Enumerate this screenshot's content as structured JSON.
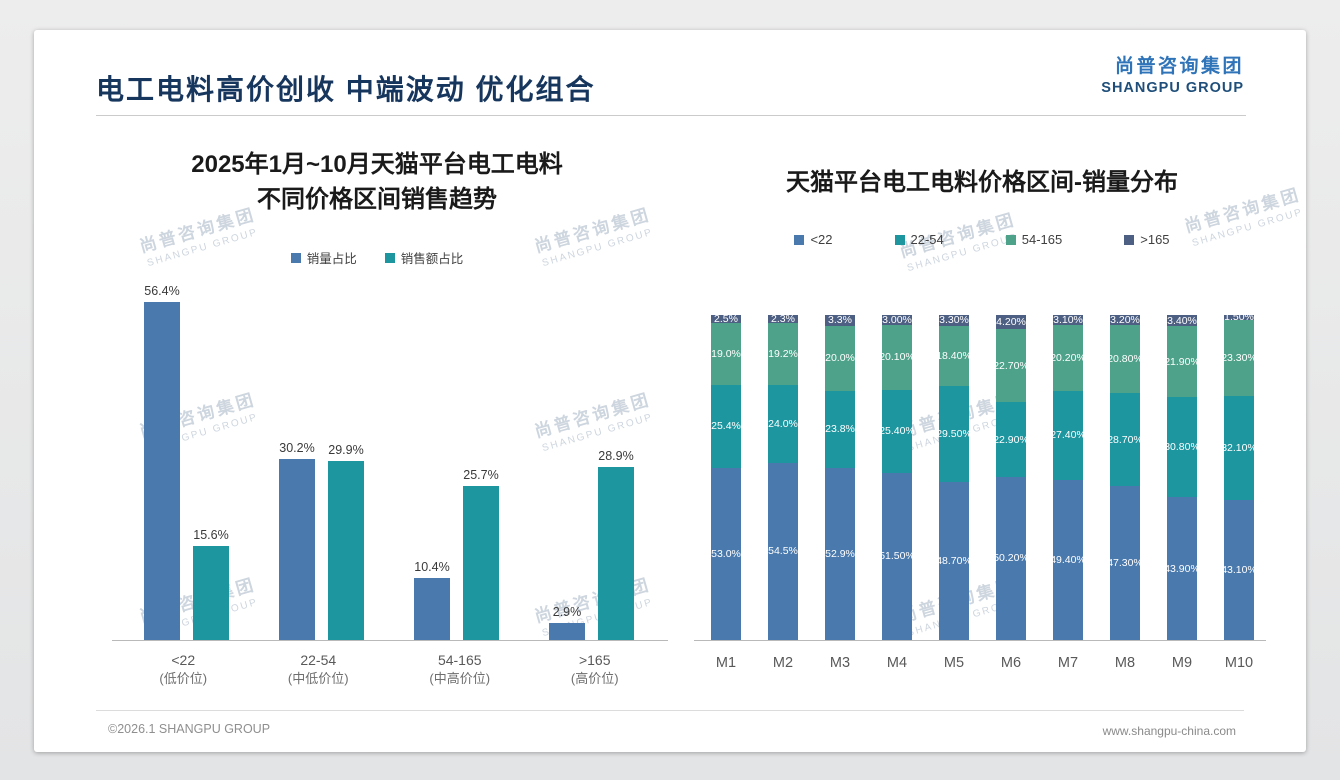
{
  "slide": {
    "title": "电工电料高价创收 中端波动 优化组合",
    "footer": {
      "left": "©2026.1 SHANGPU GROUP",
      "right": "www.shangpu-china.com"
    }
  },
  "logo": {
    "cn": "尚普咨询集团",
    "en": "SHANGPU GROUP"
  },
  "watermark": {
    "cn": "尚普咨询集团",
    "en": "SHANGPU GROUP"
  },
  "colors": {
    "title": "#17365d",
    "logo_cn": "#2f74b8",
    "logo_en": "#1e4e79",
    "blue": "#4a79ad",
    "teal": "#1e96a0",
    "green": "#4ea289",
    "slate": "#4d5f82"
  },
  "chart_data": [
    {
      "type": "bar",
      "title_lines": [
        "2025年1月~10月天猫平台电工电料",
        "不同价格区间销售趋势"
      ],
      "unit": "%",
      "ylim": [
        0,
        60
      ],
      "grid": false,
      "legend_position": "top",
      "categories": [
        {
          "label": "<22",
          "sub": "(低价位)"
        },
        {
          "label": "22-54",
          "sub": "(中低价位)"
        },
        {
          "label": "54-165",
          "sub": "(中高价位)"
        },
        {
          "label": ">165",
          "sub": "(高价位)"
        }
      ],
      "series": [
        {
          "key": "volume-share",
          "name": "销量占比",
          "color": "#4a79ad",
          "values": [
            56.4,
            30.2,
            10.4,
            2.9
          ],
          "labels": [
            "56.4%",
            "30.2%",
            "10.4%",
            "2.9%"
          ]
        },
        {
          "key": "revenue-share",
          "name": "销售额占比",
          "color": "#1e96a0",
          "values": [
            15.6,
            29.9,
            25.7,
            28.9
          ],
          "labels": [
            "15.6%",
            "29.9%",
            "25.7%",
            "28.9%"
          ]
        }
      ]
    },
    {
      "type": "bar",
      "subtype": "stacked-100",
      "title": "天猫平台电工电料价格区间-销量分布",
      "unit": "%",
      "ylim": [
        0,
        100
      ],
      "grid": false,
      "legend_position": "top",
      "categories": [
        "M1",
        "M2",
        "M3",
        "M4",
        "M5",
        "M6",
        "M7",
        "M8",
        "M9",
        "M10"
      ],
      "series": [
        {
          "key": "lt-22",
          "name": "<22",
          "color": "#4a79ad",
          "values": [
            53.0,
            54.5,
            52.9,
            51.5,
            48.7,
            50.2,
            49.4,
            47.3,
            43.9,
            43.1
          ],
          "labels": [
            "53.0%",
            "54.5%",
            "52.9%",
            "51.50%",
            "48.70%",
            "50.20%",
            "49.40%",
            "47.30%",
            "43.90%",
            "43.10%"
          ]
        },
        {
          "key": "range-22-54",
          "name": "22-54",
          "color": "#1e96a0",
          "values": [
            25.4,
            24.0,
            23.8,
            25.4,
            29.5,
            22.9,
            27.4,
            28.7,
            30.8,
            32.1
          ],
          "labels": [
            "25.4%",
            "24.0%",
            "23.8%",
            "25.40%",
            "29.50%",
            "22.90%",
            "27.40%",
            "28.70%",
            "30.80%",
            "32.10%"
          ]
        },
        {
          "key": "range-54-165",
          "name": "54-165",
          "color": "#4ea289",
          "values": [
            19.0,
            19.2,
            20.0,
            20.1,
            18.4,
            22.7,
            20.2,
            20.8,
            21.9,
            23.3
          ],
          "labels": [
            "19.0%",
            "19.2%",
            "20.0%",
            "20.10%",
            "18.40%",
            "22.70%",
            "20.20%",
            "20.80%",
            "21.90%",
            "23.30%"
          ]
        },
        {
          "key": "gt-165",
          "name": ">165",
          "color": "#4d5f82",
          "values": [
            2.5,
            2.3,
            3.3,
            3.0,
            3.3,
            4.2,
            3.1,
            3.2,
            3.4,
            1.5
          ],
          "labels": [
            "2.5%",
            "2.3%",
            "3.3%",
            "3.00%",
            "3.30%",
            "4.20%",
            "3.10%",
            "3.20%",
            "3.40%",
            "1.50%"
          ]
        }
      ]
    }
  ]
}
